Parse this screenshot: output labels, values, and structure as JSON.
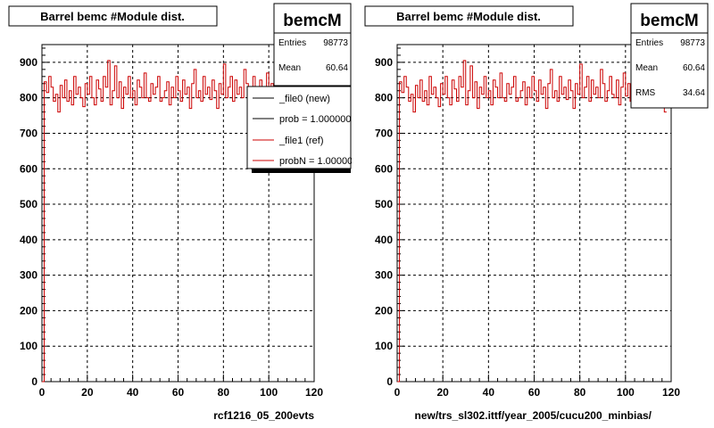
{
  "chart_data": [
    {
      "type": "line",
      "title": "Barrel bemc #Module dist.",
      "xlabel": "rcf1216_05_200evts",
      "ylabel": "",
      "xlim": [
        0,
        120
      ],
      "ylim": [
        0,
        950
      ],
      "xticks": [
        0,
        20,
        40,
        60,
        80,
        100,
        120
      ],
      "yticks": [
        0,
        100,
        200,
        300,
        400,
        500,
        600,
        700,
        800,
        900
      ],
      "grid": true,
      "stats": {
        "name": "bemcM",
        "rows": [
          {
            "label": "Entries",
            "value": "98773"
          },
          {
            "label": "Mean",
            "value": "60.64"
          }
        ]
      },
      "legend": {
        "placement": "top-right",
        "entries": [
          {
            "label": "_file0 (new)",
            "color": "#000000"
          },
          {
            "label": "prob = 1.000000",
            "color": "#000000"
          },
          {
            "label": "_file1 (ref)",
            "color": "#cc0000"
          },
          {
            "label": "probN = 1.000000",
            "color": "#cc0000"
          }
        ]
      },
      "series": [
        {
          "color": "#cc0000",
          "start_x": 1,
          "bin_width": 1,
          "values": [
            0,
            845,
            815,
            860,
            830,
            790,
            810,
            760,
            835,
            800,
            850,
            790,
            820,
            780,
            860,
            810,
            830,
            800,
            775,
            840,
            810,
            860,
            800,
            780,
            850,
            825,
            790,
            860,
            830,
            905,
            780,
            820,
            890,
            800,
            845,
            770,
            830,
            810,
            860,
            800,
            820,
            780,
            850,
            830,
            800,
            870,
            800,
            790,
            840,
            810,
            830,
            860,
            790,
            800,
            820,
            845,
            780,
            830,
            800,
            860,
            820,
            790,
            850,
            810,
            830,
            770,
            840,
            880,
            800,
            820,
            790,
            860,
            810,
            830,
            795,
            850,
            820,
            770,
            840,
            810,
            895,
            800,
            830,
            860,
            790,
            850,
            810,
            830,
            800,
            880,
            840,
            790,
            820,
            860,
            810,
            800,
            850,
            780,
            830,
            870,
            805,
            840,
            790,
            860,
            820,
            800,
            830,
            850,
            790,
            820,
            840,
            800,
            860,
            780,
            830,
            810,
            850,
            760,
            820,
            800
          ]
        }
      ]
    },
    {
      "type": "line",
      "title": "Barrel bemc #Module dist.",
      "xlabel": "new/trs_sl302.ittf/year_2005/cucu200_minbias/",
      "ylabel": "",
      "xlim": [
        0,
        120
      ],
      "ylim": [
        0,
        950
      ],
      "xticks": [
        0,
        20,
        40,
        60,
        80,
        100,
        120
      ],
      "yticks": [
        0,
        100,
        200,
        300,
        400,
        500,
        600,
        700,
        800,
        900
      ],
      "grid": true,
      "stats": {
        "name": "bemcM",
        "rows": [
          {
            "label": "Entries",
            "value": "98773"
          },
          {
            "label": "Mean",
            "value": "60.64"
          },
          {
            "label": "RMS",
            "value": "34.64"
          }
        ]
      },
      "series": [
        {
          "color": "#cc0000",
          "start_x": 1,
          "bin_width": 1,
          "values": [
            0,
            845,
            815,
            860,
            830,
            790,
            810,
            760,
            835,
            800,
            850,
            790,
            820,
            780,
            860,
            810,
            830,
            800,
            775,
            840,
            810,
            860,
            800,
            780,
            850,
            825,
            790,
            860,
            830,
            905,
            780,
            820,
            890,
            800,
            845,
            770,
            830,
            810,
            860,
            800,
            820,
            780,
            850,
            830,
            800,
            870,
            800,
            790,
            840,
            810,
            830,
            860,
            790,
            800,
            820,
            845,
            780,
            830,
            800,
            860,
            820,
            790,
            850,
            810,
            830,
            770,
            840,
            880,
            800,
            820,
            790,
            860,
            810,
            830,
            795,
            850,
            820,
            770,
            840,
            810,
            895,
            800,
            830,
            860,
            790,
            850,
            810,
            830,
            800,
            880,
            840,
            790,
            820,
            860,
            810,
            800,
            850,
            780,
            830,
            870,
            805,
            840,
            790,
            860,
            820,
            800,
            830,
            850,
            790,
            820,
            840,
            800,
            860,
            780,
            830,
            810,
            850,
            760
          ]
        }
      ]
    }
  ]
}
